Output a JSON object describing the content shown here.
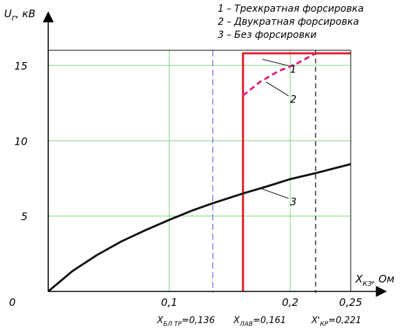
{
  "chart_data": {
    "type": "line",
    "y_label_main": "U",
    "y_label_sub": "Г",
    "y_label_unit": ", кВ",
    "x_label_main": "X",
    "x_label_sub": "КЗ",
    "x_label_unit": ", Ом",
    "xlim": [
      0,
      0.25
    ],
    "ylim": [
      0,
      16
    ],
    "x_ticks": [
      {
        "value": 0.1,
        "label": "0,1"
      },
      {
        "value": 0.2,
        "label": "0,2"
      },
      {
        "value": 0.25,
        "label": "0,25"
      }
    ],
    "y_ticks": [
      {
        "value": 5,
        "label": "5"
      },
      {
        "value": 10,
        "label": "10"
      },
      {
        "value": 15,
        "label": "15"
      }
    ],
    "origin_label": "0",
    "grid": true,
    "colors": {
      "axis": "#000000",
      "grid": "#7fd17f",
      "series_1": "#e0202a",
      "series_2": "#e0207f",
      "series_3": "#111111",
      "marker_blue": "#6a6ad8",
      "marker_black": "#000000"
    },
    "legend": [
      {
        "number": "1",
        "dash": "–",
        "text": "Трехкратная форсировка"
      },
      {
        "number": "2",
        "dash": "–",
        "text": "Двукратная форсировка"
      },
      {
        "number": "3",
        "dash": "–",
        "text": "Без форсировки"
      }
    ],
    "series": [
      {
        "id": "1",
        "points": [
          [
            0.161,
            0
          ],
          [
            0.161,
            15.8
          ],
          [
            0.25,
            15.8
          ]
        ]
      },
      {
        "id": "2",
        "points": [
          [
            0.161,
            13.0
          ],
          [
            0.175,
            13.9
          ],
          [
            0.19,
            14.6
          ],
          [
            0.205,
            15.1
          ],
          [
            0.221,
            15.8
          ]
        ]
      },
      {
        "id": "3",
        "points": [
          [
            0,
            0
          ],
          [
            0.02,
            1.35
          ],
          [
            0.04,
            2.4
          ],
          [
            0.06,
            3.3
          ],
          [
            0.08,
            4.05
          ],
          [
            0.1,
            4.75
          ],
          [
            0.12,
            5.4
          ],
          [
            0.136,
            5.85
          ],
          [
            0.161,
            6.5
          ],
          [
            0.18,
            6.95
          ],
          [
            0.2,
            7.45
          ],
          [
            0.221,
            7.85
          ],
          [
            0.25,
            8.45
          ]
        ]
      }
    ],
    "top_boundary": 16,
    "right_boundary": 0.25,
    "vertical_markers": [
      {
        "id": "bl",
        "x": 0.136,
        "main": "X",
        "sub": "БЛ ТР",
        "value": "=0,136",
        "style": "dashed-blue"
      },
      {
        "id": "lav",
        "x": 0.161,
        "main": "X",
        "sub": "ЛАВ",
        "value": "=0,161",
        "style": "solid-red"
      },
      {
        "id": "kr",
        "x": 0.221,
        "main": "X'",
        "sub": "КР",
        "value": "=0,221",
        "style": "dashed-black"
      }
    ],
    "curve_labels": [
      {
        "series": "1",
        "text": "1",
        "anchor": [
          0.177,
          15.4
        ],
        "label_at": [
          0.193,
          14.7
        ]
      },
      {
        "series": "2",
        "text": "2",
        "anchor": [
          0.18,
          13.9
        ],
        "label_at": [
          0.193,
          12.7
        ]
      },
      {
        "series": "3",
        "text": "3",
        "anchor": [
          0.175,
          6.85
        ],
        "label_at": [
          0.193,
          5.9
        ]
      }
    ]
  }
}
